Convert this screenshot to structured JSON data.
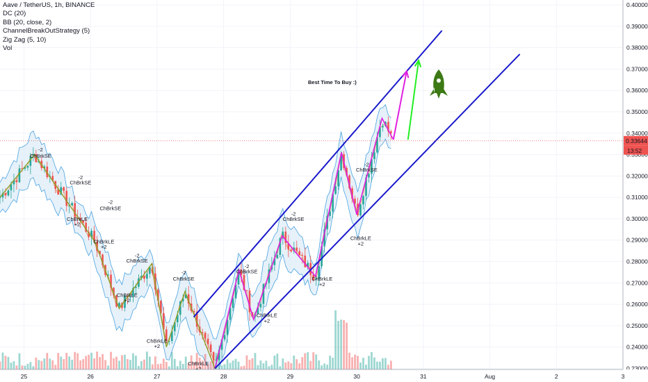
{
  "legend": {
    "line1": "Aave / TetherUS, 1h, BINANCE",
    "line2": "DC (20)",
    "line3": "BB (20, close, 2)",
    "line4": "ChannelBreakOutStrategy (5)",
    "line5": "Zig Zag (5, 10)",
    "line6": "Vol"
  },
  "price_tag": {
    "value": "0.33644",
    "timer": "13:52"
  },
  "annotation": {
    "text": "Best Time To Buy :)",
    "color": "#e0201b"
  },
  "colors": {
    "up": "#26a69a",
    "down": "#ef5350",
    "zigzag": "#8fa02a",
    "channel": "#1a1acc",
    "forecast_pink": "#e020e0",
    "forecast_green": "#22ee22",
    "rocket": "#3d7a16",
    "bb": "#4aa3df",
    "dc": "#e08030"
  },
  "signals": [
    {
      "text": "-2"
    },
    {
      "text": "ChBrkSE"
    },
    {
      "text": "-2"
    },
    {
      "text": "ChBrkSE"
    },
    {
      "text": "-2"
    },
    {
      "text": "ChBrkSE"
    },
    {
      "text": "ChBrkLE"
    },
    {
      "text": "+2"
    },
    {
      "text": "ChBrkLE"
    },
    {
      "text": "+2"
    },
    {
      "text": "-2"
    },
    {
      "text": "ChBrkSE"
    },
    {
      "text": "ChBrkLE"
    },
    {
      "text": "+2"
    },
    {
      "text": "-2"
    },
    {
      "text": "ChBrkSE"
    },
    {
      "text": "ChBrkLE"
    },
    {
      "text": "+2"
    },
    {
      "text": "ChBrkLE"
    },
    {
      "text": "+2"
    },
    {
      "text": "-2"
    },
    {
      "text": "ChBrkSE"
    },
    {
      "text": "ChBrkLE"
    },
    {
      "text": "+2"
    },
    {
      "text": "-2"
    },
    {
      "text": "ChBrkSE"
    },
    {
      "text": "ChBrkLE"
    },
    {
      "text": "+2"
    },
    {
      "text": "-2"
    },
    {
      "text": "ChBrkSE"
    },
    {
      "text": "ChBrkLE"
    },
    {
      "text": "+2"
    }
  ],
  "chart_data": {
    "type": "candlestick",
    "symbol": "Aave / TetherUS",
    "interval": "1h",
    "exchange": "BINANCE",
    "y_ticks": [
      0.23,
      0.24,
      0.25,
      0.26,
      0.27,
      0.28,
      0.29,
      0.3,
      0.31,
      0.32,
      0.33,
      0.34,
      0.35,
      0.36,
      0.37,
      0.38,
      0.39,
      0.4
    ],
    "y_tick_labels": [
      "0.23000",
      "0.24000",
      "0.25000",
      "0.26000",
      "0.27000",
      "0.28000",
      "0.29000",
      "0.30000",
      "0.31000",
      "0.32000",
      "0.33000",
      "0.34000",
      "0.35000",
      "0.36000",
      "0.37000",
      "0.38000",
      "0.39000",
      "0.40000"
    ],
    "ylim": [
      0.2295,
      0.401
    ],
    "x_ticks": [
      "25",
      "26",
      "27",
      "28",
      "29",
      "30",
      "31",
      "Aug",
      "2",
      "3"
    ],
    "x_tick_days": [
      25,
      26,
      27,
      28,
      29,
      30,
      31,
      32,
      33,
      34
    ],
    "xlim": [
      24.64,
      34.0
    ],
    "last_price": 0.33644,
    "zigzag": [
      [
        24.64,
        0.31
      ],
      [
        25.16,
        0.33
      ],
      [
        26.07,
        0.289
      ],
      [
        26.43,
        0.258
      ],
      [
        26.92,
        0.279
      ],
      [
        27.14,
        0.24
      ],
      [
        27.42,
        0.266
      ],
      [
        27.87,
        0.23
      ],
      [
        28.23,
        0.276
      ],
      [
        28.45,
        0.253
      ],
      [
        28.88,
        0.292
      ],
      [
        29.38,
        0.273
      ],
      [
        29.77,
        0.331
      ],
      [
        30.0,
        0.302
      ],
      [
        30.38,
        0.347
      ]
    ],
    "zigzag_pink": [
      [
        27.87,
        0.23
      ],
      [
        28.23,
        0.276
      ],
      [
        28.45,
        0.253
      ],
      [
        28.88,
        0.292
      ],
      [
        29.38,
        0.273
      ],
      [
        29.77,
        0.331
      ],
      [
        30.0,
        0.302
      ],
      [
        30.38,
        0.347
      ],
      [
        30.55,
        0.337
      ]
    ],
    "channel_upper": [
      [
        27.55,
        0.254
      ],
      [
        31.28,
        0.388
      ]
    ],
    "channel_lower": [
      [
        27.87,
        0.23
      ],
      [
        32.45,
        0.377
      ]
    ],
    "forecast_pink": [
      [
        30.55,
        0.337
      ],
      [
        30.75,
        0.369
      ]
    ],
    "forecast_green": [
      [
        30.77,
        0.337
      ],
      [
        30.93,
        0.374
      ]
    ]
  }
}
